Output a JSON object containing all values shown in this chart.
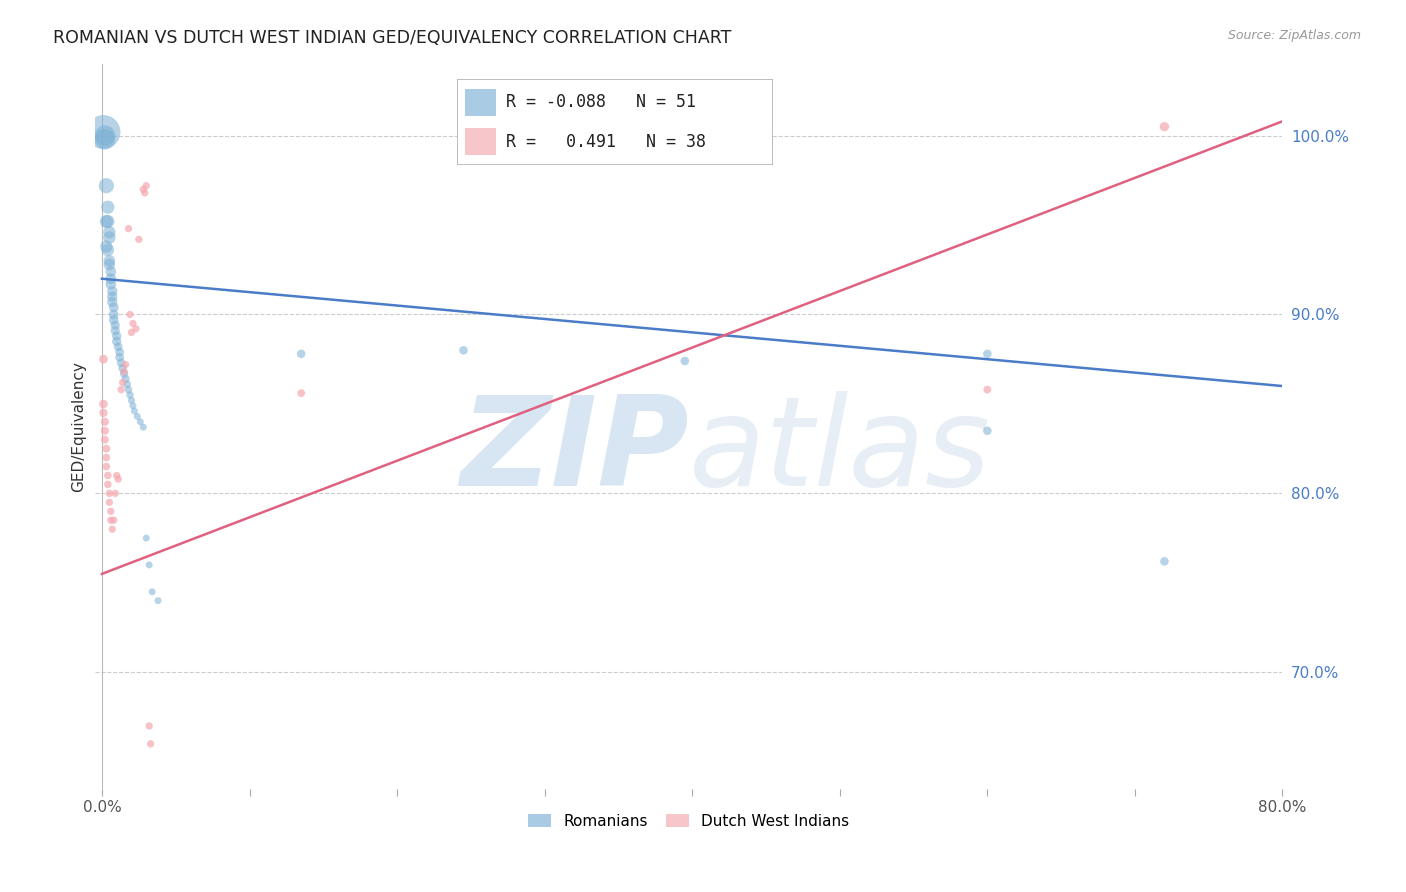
{
  "title": "ROMANIAN VS DUTCH WEST INDIAN GED/EQUIVALENCY CORRELATION CHART",
  "source": "Source: ZipAtlas.com",
  "ylabel": "GED/Equivalency",
  "right_yticks": [
    "100.0%",
    "90.0%",
    "80.0%",
    "70.0%"
  ],
  "right_ytick_vals": [
    1.0,
    0.9,
    0.8,
    0.7
  ],
  "blue_R": "-0.088",
  "blue_N": "51",
  "pink_R": "0.491",
  "pink_N": "38",
  "blue_color": "#7BAFD4",
  "pink_color": "#F4A8B0",
  "blue_line_color": "#4A7CC7",
  "pink_line_color": "#E06080",
  "watermark_zip": "ZIP",
  "watermark_atlas": "atlas",
  "blue_points": [
    [
      0.001,
      1.002
    ],
    [
      0.002,
      1.0
    ],
    [
      0.002,
      0.998
    ],
    [
      0.003,
      0.972
    ],
    [
      0.004,
      0.96
    ],
    [
      0.003,
      0.952
    ],
    [
      0.004,
      0.952
    ],
    [
      0.005,
      0.946
    ],
    [
      0.005,
      0.943
    ],
    [
      0.003,
      0.938
    ],
    [
      0.004,
      0.936
    ],
    [
      0.005,
      0.93
    ],
    [
      0.005,
      0.928
    ],
    [
      0.006,
      0.924
    ],
    [
      0.006,
      0.92
    ],
    [
      0.006,
      0.917
    ],
    [
      0.007,
      0.913
    ],
    [
      0.007,
      0.91
    ],
    [
      0.007,
      0.907
    ],
    [
      0.008,
      0.904
    ],
    [
      0.008,
      0.9
    ],
    [
      0.008,
      0.897
    ],
    [
      0.009,
      0.894
    ],
    [
      0.009,
      0.891
    ],
    [
      0.01,
      0.888
    ],
    [
      0.01,
      0.885
    ],
    [
      0.011,
      0.882
    ],
    [
      0.012,
      0.879
    ],
    [
      0.012,
      0.876
    ],
    [
      0.013,
      0.873
    ],
    [
      0.014,
      0.87
    ],
    [
      0.015,
      0.867
    ],
    [
      0.016,
      0.864
    ],
    [
      0.017,
      0.861
    ],
    [
      0.018,
      0.858
    ],
    [
      0.019,
      0.855
    ],
    [
      0.02,
      0.852
    ],
    [
      0.021,
      0.849
    ],
    [
      0.022,
      0.846
    ],
    [
      0.024,
      0.843
    ],
    [
      0.026,
      0.84
    ],
    [
      0.028,
      0.837
    ],
    [
      0.03,
      0.775
    ],
    [
      0.032,
      0.76
    ],
    [
      0.034,
      0.745
    ],
    [
      0.038,
      0.74
    ],
    [
      0.135,
      0.878
    ],
    [
      0.245,
      0.88
    ],
    [
      0.395,
      0.874
    ],
    [
      0.6,
      0.878
    ],
    [
      0.6,
      0.835
    ],
    [
      0.72,
      0.762
    ]
  ],
  "blue_sizes": [
    600,
    220,
    220,
    120,
    90,
    90,
    90,
    80,
    80,
    80,
    80,
    70,
    70,
    60,
    60,
    60,
    55,
    55,
    55,
    50,
    50,
    50,
    45,
    45,
    45,
    45,
    40,
    40,
    40,
    38,
    38,
    36,
    34,
    32,
    30,
    28,
    27,
    26,
    25,
    25,
    25,
    25,
    25,
    25,
    25,
    25,
    38,
    38,
    38,
    38,
    38,
    38
  ],
  "pink_points": [
    [
      0.001,
      0.875
    ],
    [
      0.001,
      0.85
    ],
    [
      0.001,
      0.845
    ],
    [
      0.002,
      0.84
    ],
    [
      0.002,
      0.835
    ],
    [
      0.002,
      0.83
    ],
    [
      0.003,
      0.825
    ],
    [
      0.003,
      0.82
    ],
    [
      0.003,
      0.815
    ],
    [
      0.004,
      0.81
    ],
    [
      0.004,
      0.805
    ],
    [
      0.005,
      0.8
    ],
    [
      0.005,
      0.795
    ],
    [
      0.006,
      0.79
    ],
    [
      0.006,
      0.785
    ],
    [
      0.007,
      0.78
    ],
    [
      0.008,
      0.785
    ],
    [
      0.009,
      0.8
    ],
    [
      0.01,
      0.81
    ],
    [
      0.011,
      0.808
    ],
    [
      0.013,
      0.858
    ],
    [
      0.014,
      0.862
    ],
    [
      0.015,
      0.868
    ],
    [
      0.016,
      0.872
    ],
    [
      0.018,
      0.948
    ],
    [
      0.019,
      0.9
    ],
    [
      0.02,
      0.89
    ],
    [
      0.021,
      0.895
    ],
    [
      0.023,
      0.892
    ],
    [
      0.025,
      0.942
    ],
    [
      0.028,
      0.97
    ],
    [
      0.029,
      0.968
    ],
    [
      0.03,
      0.972
    ],
    [
      0.032,
      0.67
    ],
    [
      0.033,
      0.66
    ],
    [
      0.135,
      0.856
    ],
    [
      0.6,
      0.858
    ],
    [
      0.72,
      1.005
    ]
  ],
  "pink_sizes": [
    40,
    38,
    36,
    34,
    34,
    32,
    32,
    30,
    30,
    30,
    30,
    28,
    28,
    28,
    28,
    28,
    28,
    28,
    28,
    28,
    28,
    28,
    28,
    28,
    28,
    28,
    28,
    28,
    28,
    28,
    28,
    28,
    28,
    28,
    28,
    32,
    32,
    45
  ],
  "blue_line": {
    "x0": 0.0,
    "y0": 0.92,
    "x1": 0.8,
    "y1": 0.86
  },
  "pink_line": {
    "x0": 0.0,
    "y0": 0.755,
    "x1": 0.8,
    "y1": 1.008
  },
  "xlim": [
    -0.005,
    0.8
  ],
  "ylim": [
    0.635,
    1.04
  ],
  "grid_yticks": [
    1.0,
    0.9,
    0.8,
    0.7
  ],
  "grid_color": "#CCCCCC",
  "background_color": "#FFFFFF"
}
